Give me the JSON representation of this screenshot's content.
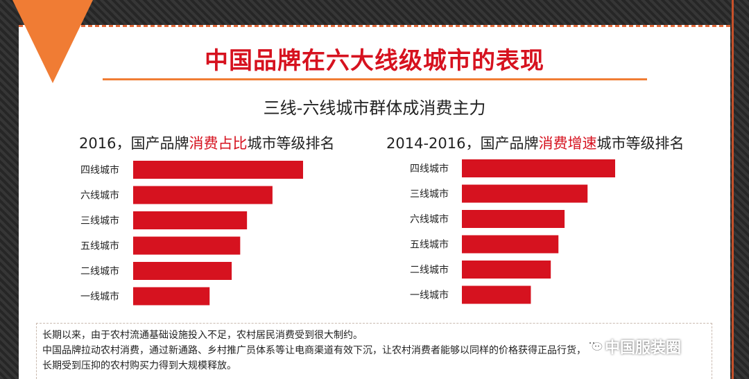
{
  "page": {
    "title": "中国品牌在六大线级城市的表现",
    "subtitle": "三线-六线城市群体成消费主力"
  },
  "chart_data": [
    {
      "type": "bar",
      "orientation": "horizontal",
      "title_parts": [
        "2016，国产品牌",
        "消费占比",
        "城市等级排名"
      ],
      "categories": [
        "四线城市",
        "六线城市",
        "三线城市",
        "五线城市",
        "二线城市",
        "一线城市"
      ],
      "values": [
        100,
        82,
        67,
        63,
        58,
        45
      ],
      "xlim": [
        0,
        100
      ],
      "grid": false,
      "color": "#d6121f"
    },
    {
      "type": "bar",
      "orientation": "horizontal",
      "title_parts": [
        "2014-2016，国产品牌",
        "消费增速",
        "城市等级排名"
      ],
      "categories": [
        "四线城市",
        "三线城市",
        "六线城市",
        "五线城市",
        "二线城市",
        "一线城市"
      ],
      "values": [
        100,
        82,
        67,
        63,
        58,
        45
      ],
      "xlim": [
        0,
        100
      ],
      "grid": false,
      "color": "#d6121f"
    }
  ],
  "notes": [
    "长期以来，由于农村流通基础设施投入不足，农村居民消费受到很大制约。",
    "中国品牌拉动农村消费，通过新通路、乡村推广员体系等让电商渠道有效下沉，让农村消费者能够以同样的价格获得正品行货，",
    "长期受到压抑的农村购买力得到大规模释放。"
  ],
  "watermark": "中国服装圈",
  "colors": {
    "accent_red": "#d6121f",
    "accent_orange": "#f07c34"
  },
  "icons": {
    "watermark_icon": "wechat-icon"
  }
}
